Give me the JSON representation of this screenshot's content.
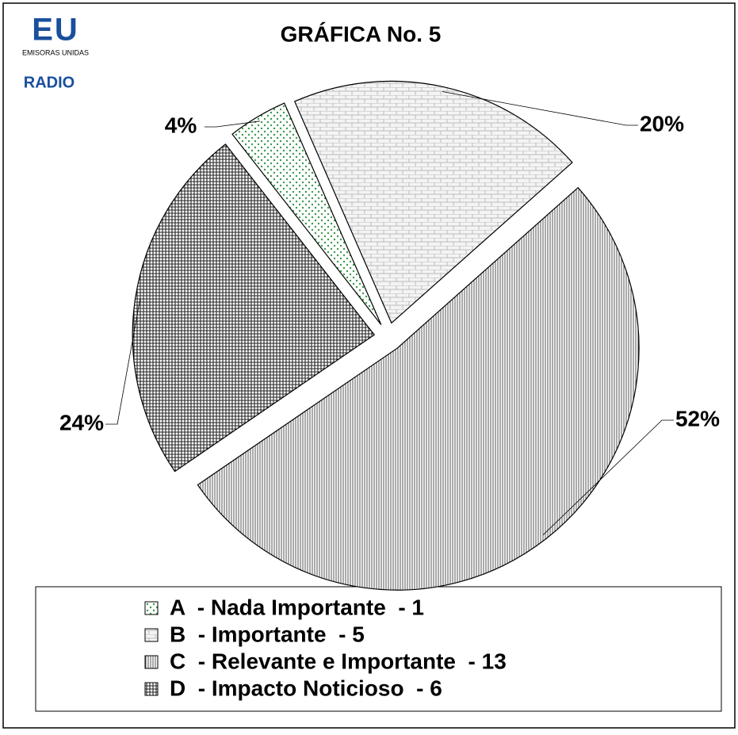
{
  "chart_data": {
    "type": "pie",
    "title": "GRÁFICA No. 5",
    "logo": "EU",
    "logo_subtitle": "EMISORAS UNIDAS",
    "logo_radio": "RADIO",
    "categories": [
      "A  - Nada Importante  - 1",
      "B  - Importante  - 5",
      "C  - Relevante e Importante  - 13",
      "D  - Impacto Noticioso  - 6"
    ],
    "values": [
      4,
      20,
      52,
      24
    ],
    "value_labels": [
      "4%",
      "20%",
      "52%",
      "24%"
    ],
    "legend": "bottom"
  }
}
